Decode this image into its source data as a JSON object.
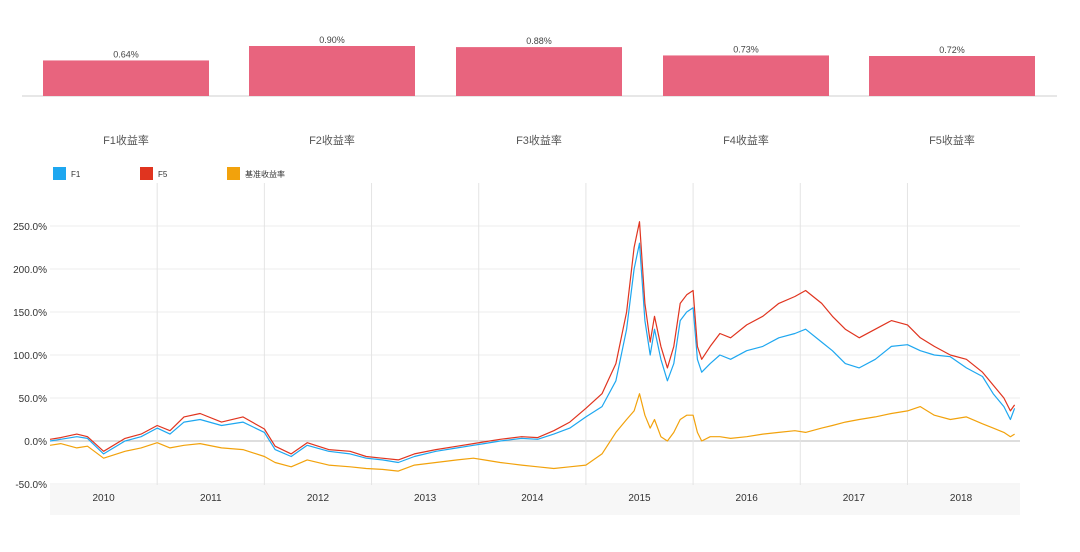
{
  "chart_data": [
    {
      "type": "bar",
      "categories": [
        "F1收益率",
        "F2收益率",
        "F3收益率",
        "F4收益率",
        "F5收益率"
      ],
      "values": [
        0.64,
        0.9,
        0.88,
        0.73,
        0.72
      ],
      "value_labels": [
        "0.64%",
        "0.90%",
        "0.88%",
        "0.73%",
        "0.72%"
      ],
      "bar_color": "#e8647e",
      "ylim": [
        0,
        1.0
      ]
    },
    {
      "type": "line",
      "legend_position": "top-left",
      "grid": true,
      "ylim": [
        -50,
        275
      ],
      "yticks": [
        -50,
        0,
        50,
        100,
        150,
        200,
        250
      ],
      "ytick_labels": [
        "-50.0%",
        "0.0%",
        "50.0%",
        "100.0%",
        "150.0%",
        "200.0%",
        "250.0%"
      ],
      "xlim": [
        2009.5,
        2018.55
      ],
      "xticks": [
        2010,
        2011,
        2012,
        2013,
        2014,
        2015,
        2016,
        2017,
        2018
      ],
      "xtick_labels": [
        "2010",
        "2011",
        "2012",
        "2013",
        "2014",
        "2015",
        "2016",
        "2017",
        "2018"
      ],
      "year_boundaries": [
        2010.5,
        2011.5,
        2012.5,
        2013.5,
        2014.5,
        2015.5,
        2016.5,
        2017.5
      ],
      "series": [
        {
          "name": "F1",
          "color": "#1ea7f0",
          "x": [
            2009.5,
            2009.6,
            2009.75,
            2009.85,
            2010.0,
            2010.2,
            2010.35,
            2010.5,
            2010.62,
            2010.75,
            2010.9,
            2011.1,
            2011.3,
            2011.5,
            2011.6,
            2011.75,
            2011.9,
            2012.1,
            2012.3,
            2012.45,
            2012.6,
            2012.75,
            2012.9,
            2013.1,
            2013.3,
            2013.45,
            2013.55,
            2013.7,
            2013.9,
            2014.05,
            2014.2,
            2014.35,
            2014.5,
            2014.65,
            2014.78,
            2014.88,
            2014.95,
            2015.0,
            2015.05,
            2015.1,
            2015.14,
            2015.2,
            2015.26,
            2015.32,
            2015.38,
            2015.44,
            2015.5,
            2015.54,
            2015.58,
            2015.66,
            2015.75,
            2015.85,
            2016.0,
            2016.15,
            2016.3,
            2016.45,
            2016.55,
            2016.7,
            2016.8,
            2016.92,
            2017.05,
            2017.2,
            2017.35,
            2017.5,
            2017.62,
            2017.75,
            2017.9,
            2018.05,
            2018.2,
            2018.3,
            2018.4,
            2018.46,
            2018.5
          ],
          "y": [
            0,
            2,
            5,
            3,
            -15,
            0,
            5,
            15,
            8,
            22,
            25,
            18,
            22,
            10,
            -10,
            -18,
            -5,
            -12,
            -15,
            -20,
            -22,
            -25,
            -18,
            -12,
            -8,
            -5,
            -3,
            0,
            3,
            2,
            8,
            15,
            28,
            40,
            70,
            130,
            200,
            230,
            140,
            100,
            130,
            95,
            70,
            90,
            140,
            150,
            155,
            95,
            80,
            90,
            100,
            95,
            105,
            110,
            120,
            125,
            130,
            115,
            105,
            90,
            85,
            95,
            110,
            112,
            105,
            100,
            98,
            85,
            75,
            55,
            40,
            25,
            38
          ]
        },
        {
          "name": "F5",
          "color": "#e0341f",
          "x": [
            2009.5,
            2009.6,
            2009.75,
            2009.85,
            2010.0,
            2010.2,
            2010.35,
            2010.5,
            2010.62,
            2010.75,
            2010.9,
            2011.1,
            2011.3,
            2011.5,
            2011.6,
            2011.75,
            2011.9,
            2012.1,
            2012.3,
            2012.45,
            2012.6,
            2012.75,
            2012.9,
            2013.1,
            2013.3,
            2013.45,
            2013.55,
            2013.7,
            2013.9,
            2014.05,
            2014.2,
            2014.35,
            2014.5,
            2014.65,
            2014.78,
            2014.88,
            2014.95,
            2015.0,
            2015.05,
            2015.1,
            2015.14,
            2015.2,
            2015.26,
            2015.32,
            2015.38,
            2015.44,
            2015.5,
            2015.54,
            2015.58,
            2015.66,
            2015.75,
            2015.85,
            2016.0,
            2016.15,
            2016.3,
            2016.45,
            2016.55,
            2016.7,
            2016.8,
            2016.92,
            2017.05,
            2017.2,
            2017.35,
            2017.5,
            2017.62,
            2017.75,
            2017.9,
            2018.05,
            2018.2,
            2018.3,
            2018.4,
            2018.46,
            2018.5
          ],
          "y": [
            2,
            4,
            8,
            5,
            -12,
            3,
            8,
            18,
            12,
            28,
            32,
            22,
            28,
            14,
            -6,
            -15,
            -2,
            -10,
            -12,
            -18,
            -20,
            -22,
            -15,
            -10,
            -6,
            -3,
            -1,
            2,
            5,
            4,
            12,
            22,
            38,
            55,
            90,
            150,
            225,
            255,
            160,
            115,
            145,
            110,
            85,
            110,
            160,
            170,
            175,
            110,
            95,
            110,
            125,
            120,
            135,
            145,
            160,
            168,
            175,
            160,
            145,
            130,
            120,
            130,
            140,
            135,
            120,
            110,
            100,
            95,
            80,
            65,
            50,
            35,
            42
          ]
        },
        {
          "name": "基准收益率",
          "color": "#f2a20c",
          "x": [
            2009.5,
            2009.6,
            2009.75,
            2009.85,
            2010.0,
            2010.2,
            2010.35,
            2010.5,
            2010.62,
            2010.75,
            2010.9,
            2011.1,
            2011.3,
            2011.5,
            2011.6,
            2011.75,
            2011.9,
            2012.1,
            2012.3,
            2012.45,
            2012.6,
            2012.75,
            2012.9,
            2013.1,
            2013.3,
            2013.45,
            2013.55,
            2013.7,
            2013.9,
            2014.05,
            2014.2,
            2014.35,
            2014.5,
            2014.65,
            2014.78,
            2014.88,
            2014.95,
            2015.0,
            2015.05,
            2015.1,
            2015.14,
            2015.2,
            2015.26,
            2015.32,
            2015.38,
            2015.44,
            2015.5,
            2015.54,
            2015.58,
            2015.66,
            2015.75,
            2015.85,
            2016.0,
            2016.15,
            2016.3,
            2016.45,
            2016.55,
            2016.7,
            2016.8,
            2016.92,
            2017.05,
            2017.2,
            2017.35,
            2017.5,
            2017.62,
            2017.75,
            2017.9,
            2018.05,
            2018.2,
            2018.3,
            2018.4,
            2018.46,
            2018.5
          ],
          "y": [
            -5,
            -3,
            -8,
            -6,
            -20,
            -12,
            -8,
            -2,
            -8,
            -5,
            -3,
            -8,
            -10,
            -18,
            -25,
            -30,
            -22,
            -28,
            -30,
            -32,
            -33,
            -35,
            -28,
            -25,
            -22,
            -20,
            -22,
            -25,
            -28,
            -30,
            -32,
            -30,
            -28,
            -15,
            10,
            25,
            35,
            55,
            30,
            15,
            25,
            5,
            0,
            10,
            25,
            30,
            30,
            10,
            0,
            5,
            5,
            3,
            5,
            8,
            10,
            12,
            10,
            15,
            18,
            22,
            25,
            28,
            32,
            35,
            40,
            30,
            25,
            28,
            20,
            15,
            10,
            5,
            8
          ]
        }
      ]
    }
  ]
}
